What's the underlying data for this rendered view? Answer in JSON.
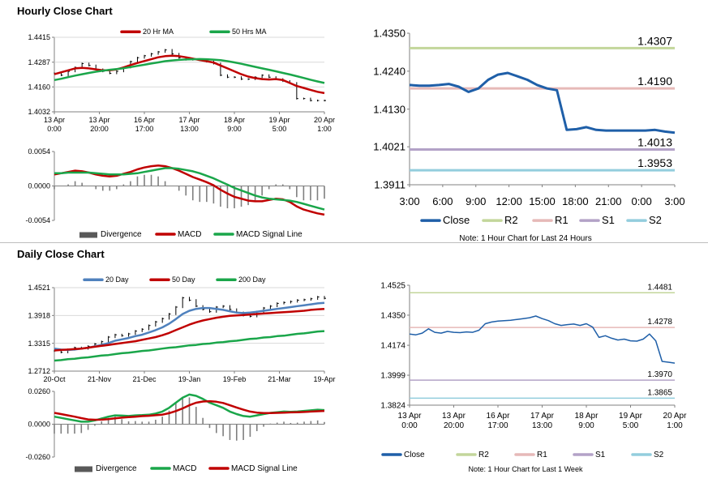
{
  "sections": {
    "hourly_title": "Hourly Close Chart",
    "daily_title": "Daily Close Chart"
  },
  "chart_data": [
    {
      "id": "hourly_price",
      "type": "line",
      "title": "",
      "ylim": [
        1.4032,
        1.4415
      ],
      "yticks": [
        "1.4415",
        "1.4287",
        "1.4160",
        "1.4032"
      ],
      "xticks": [
        [
          "13 Apr",
          "0:00"
        ],
        [
          "13 Apr",
          "20:00"
        ],
        [
          "16 Apr",
          "17:00"
        ],
        [
          "17 Apr",
          "13:00"
        ],
        [
          "18 Apr",
          "9:00"
        ],
        [
          "19 Apr",
          "5:00"
        ],
        [
          "20 Apr",
          "1:00"
        ]
      ],
      "legend": [
        "20 Hr MA",
        "50 Hrs MA"
      ],
      "series": [
        {
          "name": "Close",
          "color": "#000000",
          "values": [
            1.423,
            1.422,
            1.424,
            1.426,
            1.428,
            1.427,
            1.425,
            1.424,
            1.423,
            1.424,
            1.426,
            1.429,
            1.431,
            1.432,
            1.433,
            1.434,
            1.435,
            1.433,
            1.431,
            1.43,
            1.43,
            1.43,
            1.429,
            1.428,
            1.422,
            1.421,
            1.421,
            1.42,
            1.42,
            1.421,
            1.422,
            1.421,
            1.42,
            1.419,
            1.418,
            1.41,
            1.41,
            1.409,
            1.409,
            1.409
          ]
        },
        {
          "name": "20 Hr MA",
          "color": "#c00000",
          "values": [
            1.4225,
            1.4235,
            1.4245,
            1.4255,
            1.4258,
            1.4255,
            1.425,
            1.4245,
            1.4245,
            1.425,
            1.426,
            1.4272,
            1.4283,
            1.4293,
            1.4302,
            1.4312,
            1.4318,
            1.432,
            1.4318,
            1.4312,
            1.4305,
            1.4298,
            1.4292,
            1.4285,
            1.427,
            1.4255,
            1.424,
            1.4225,
            1.4213,
            1.4205,
            1.42,
            1.4198,
            1.42,
            1.4195,
            1.418,
            1.4165,
            1.4155,
            1.4145,
            1.4135,
            1.4128
          ]
        },
        {
          "name": "50 Hrs MA",
          "color": "#1aa64a",
          "values": [
            1.4195,
            1.4202,
            1.421,
            1.4218,
            1.4225,
            1.4232,
            1.4238,
            1.4243,
            1.4248,
            1.4252,
            1.4256,
            1.4262,
            1.4268,
            1.4274,
            1.428,
            1.4286,
            1.4292,
            1.4296,
            1.4299,
            1.4301,
            1.4302,
            1.4303,
            1.4302,
            1.43,
            1.4297,
            1.4292,
            1.4286,
            1.4279,
            1.4271,
            1.4263,
            1.4255,
            1.4248,
            1.424,
            1.4232,
            1.4224,
            1.4215,
            1.4206,
            1.4197,
            1.4188,
            1.418
          ]
        }
      ]
    },
    {
      "id": "hourly_macd",
      "type": "line",
      "ylim": [
        -0.0054,
        0.0054
      ],
      "yticks": [
        "0.0054",
        "0.0000",
        "-0.0054"
      ],
      "legend": [
        "Divergence",
        "MACD",
        "MACD Signal Line"
      ],
      "series": [
        {
          "name": "MACD",
          "color": "#c00000",
          "values": [
            0.0018,
            0.002,
            0.0022,
            0.0024,
            0.0023,
            0.0021,
            0.0018,
            0.0016,
            0.0015,
            0.0016,
            0.0019,
            0.0022,
            0.0026,
            0.0029,
            0.0031,
            0.0032,
            0.0031,
            0.0028,
            0.0024,
            0.0019,
            0.0014,
            0.001,
            0.0006,
            0.0001,
            -0.0006,
            -0.0012,
            -0.0017,
            -0.002,
            -0.0023,
            -0.0024,
            -0.0024,
            -0.0022,
            -0.002,
            -0.0021,
            -0.0025,
            -0.0032,
            -0.0037,
            -0.004,
            -0.0043,
            -0.0045
          ]
        },
        {
          "name": "MACD Signal Line",
          "color": "#1aa64a",
          "values": [
            0.002,
            0.002,
            0.0021,
            0.0021,
            0.0021,
            0.0021,
            0.002,
            0.0019,
            0.0018,
            0.0018,
            0.0018,
            0.0019,
            0.002,
            0.0022,
            0.0024,
            0.0026,
            0.0028,
            0.0028,
            0.0027,
            0.0025,
            0.0023,
            0.002,
            0.0016,
            0.0012,
            0.0007,
            0.0002,
            -0.0003,
            -0.0007,
            -0.0011,
            -0.0015,
            -0.0018,
            -0.002,
            -0.0021,
            -0.0022,
            -0.0023,
            -0.0025,
            -0.0028,
            -0.0031,
            -0.0034,
            -0.0037
          ]
        }
      ]
    },
    {
      "id": "hourly_levels",
      "type": "line",
      "ylim": [
        1.3911,
        1.435
      ],
      "yticks": [
        "1.4350",
        "1.4240",
        "1.4130",
        "1.4021",
        "1.3911"
      ],
      "xticks": [
        "3:00",
        "6:00",
        "9:00",
        "12:00",
        "15:00",
        "18:00",
        "21:00",
        "0:00",
        "3:00"
      ],
      "legend": [
        "Close",
        "R2",
        "R1",
        "S1",
        "S2"
      ],
      "levels": [
        {
          "name": "R2",
          "value": 1.4307,
          "label": "1.4307",
          "color": "#c3d69b"
        },
        {
          "name": "R1",
          "value": 1.419,
          "label": "1.4190",
          "color": "#e6b9b8"
        },
        {
          "name": "S1",
          "value": 1.4013,
          "label": "1.4013",
          "color": "#b3a2c7"
        },
        {
          "name": "S2",
          "value": 1.3953,
          "label": "1.3953",
          "color": "#93cddd"
        }
      ],
      "series": [
        {
          "name": "Close",
          "color": "#1f5fa8",
          "values": [
            1.42,
            1.4198,
            1.4198,
            1.42,
            1.4203,
            1.4195,
            1.418,
            1.419,
            1.4215,
            1.423,
            1.4235,
            1.4225,
            1.4215,
            1.42,
            1.419,
            1.4185,
            1.407,
            1.4072,
            1.4078,
            1.407,
            1.4068,
            1.4068,
            1.4068,
            1.4068,
            1.4068,
            1.407,
            1.4065,
            1.4062
          ]
        }
      ],
      "note": "Note: 1 Hour Chart for Last 24 Hours"
    },
    {
      "id": "daily_price",
      "type": "line",
      "ylim": [
        1.2712,
        1.4521
      ],
      "yticks": [
        "1.4521",
        "1.3918",
        "1.3315",
        "1.2712"
      ],
      "xticks": [
        "20-Oct",
        "21-Nov",
        "21-Dec",
        "19-Jan",
        "19-Feb",
        "21-Mar",
        "19-Apr"
      ],
      "legend": [
        "20 Day",
        "50 Day",
        "200 Day"
      ],
      "series": [
        {
          "name": "Close",
          "color": "#000000",
          "values": [
            1.315,
            1.312,
            1.318,
            1.322,
            1.32,
            1.325,
            1.33,
            1.335,
            1.345,
            1.35,
            1.348,
            1.352,
            1.358,
            1.362,
            1.37,
            1.378,
            1.385,
            1.395,
            1.41,
            1.43,
            1.425,
            1.412,
            1.405,
            1.4,
            1.41,
            1.412,
            1.405,
            1.398,
            1.392,
            1.39,
            1.4,
            1.408,
            1.412,
            1.418,
            1.42,
            1.422,
            1.425,
            1.426,
            1.428,
            1.432,
            1.429
          ]
        },
        {
          "name": "20 Day",
          "color": "#4f81bd",
          "values": [
            1.32,
            1.318,
            1.317,
            1.318,
            1.32,
            1.322,
            1.325,
            1.328,
            1.332,
            1.337,
            1.34,
            1.343,
            1.347,
            1.35,
            1.355,
            1.36,
            1.366,
            1.374,
            1.384,
            1.395,
            1.402,
            1.406,
            1.408,
            1.408,
            1.406,
            1.404,
            1.401,
            1.398,
            1.397,
            1.398,
            1.4,
            1.402,
            1.404,
            1.406,
            1.408,
            1.41,
            1.412,
            1.414,
            1.416,
            1.418,
            1.419
          ]
        },
        {
          "name": "50 Day",
          "color": "#c00000",
          "values": [
            1.316,
            1.317,
            1.318,
            1.319,
            1.32,
            1.322,
            1.324,
            1.326,
            1.328,
            1.33,
            1.332,
            1.334,
            1.336,
            1.339,
            1.342,
            1.345,
            1.349,
            1.354,
            1.36,
            1.366,
            1.372,
            1.377,
            1.381,
            1.384,
            1.387,
            1.389,
            1.391,
            1.392,
            1.393,
            1.394,
            1.395,
            1.396,
            1.397,
            1.398,
            1.399,
            1.4,
            1.401,
            1.402,
            1.404,
            1.405,
            1.406
          ]
        },
        {
          "name": "200 Day",
          "color": "#1aa64a",
          "values": [
            1.294,
            1.295,
            1.297,
            1.298,
            1.3,
            1.301,
            1.303,
            1.305,
            1.306,
            1.308,
            1.31,
            1.311,
            1.313,
            1.315,
            1.316,
            1.318,
            1.32,
            1.322,
            1.323,
            1.325,
            1.327,
            1.328,
            1.33,
            1.331,
            1.333,
            1.334,
            1.336,
            1.337,
            1.339,
            1.341,
            1.342,
            1.344,
            1.345,
            1.347,
            1.348,
            1.35,
            1.352,
            1.353,
            1.355,
            1.357,
            1.358
          ]
        }
      ]
    },
    {
      "id": "daily_macd",
      "type": "line",
      "ylim": [
        -0.026,
        0.026
      ],
      "yticks": [
        "0.0260",
        "0.0000",
        "-0.0260"
      ],
      "legend": [
        "Divergence",
        "MACD",
        "MACD Signal Line"
      ],
      "series": [
        {
          "name": "MACD",
          "color": "#1aa64a",
          "values": [
            0.006,
            0.005,
            0.004,
            0.003,
            0.002,
            0.002,
            0.003,
            0.0045,
            0.006,
            0.007,
            0.0068,
            0.0065,
            0.007,
            0.0072,
            0.0075,
            0.0085,
            0.01,
            0.013,
            0.017,
            0.021,
            0.0235,
            0.0225,
            0.02,
            0.017,
            0.015,
            0.013,
            0.01,
            0.008,
            0.0065,
            0.006,
            0.007,
            0.008,
            0.009,
            0.0095,
            0.01,
            0.0098,
            0.01,
            0.0105,
            0.011,
            0.0115,
            0.0112
          ]
        },
        {
          "name": "MACD Signal Line",
          "color": "#c00000",
          "values": [
            0.009,
            0.008,
            0.007,
            0.006,
            0.0048,
            0.0038,
            0.0035,
            0.0036,
            0.004,
            0.0046,
            0.0052,
            0.0056,
            0.006,
            0.0064,
            0.0067,
            0.0071,
            0.0076,
            0.0087,
            0.0104,
            0.0125,
            0.015,
            0.017,
            0.018,
            0.0182,
            0.0178,
            0.0168,
            0.015,
            0.0132,
            0.0115,
            0.01,
            0.0092,
            0.0088,
            0.0088,
            0.009,
            0.0092,
            0.0094,
            0.0095,
            0.0097,
            0.01,
            0.0103,
            0.0105
          ]
        }
      ]
    },
    {
      "id": "weekly_levels",
      "type": "line",
      "ylim": [
        1.3824,
        1.4525
      ],
      "yticks": [
        "1.4525",
        "1.4350",
        "1.4174",
        "1.3999",
        "1.3824"
      ],
      "xticks": [
        [
          "13 Apr",
          "0:00"
        ],
        [
          "13 Apr",
          "20:00"
        ],
        [
          "16 Apr",
          "17:00"
        ],
        [
          "17 Apr",
          "13:00"
        ],
        [
          "18 Apr",
          "9:00"
        ],
        [
          "19 Apr",
          "5:00"
        ],
        [
          "20 Apr",
          "1:00"
        ]
      ],
      "legend": [
        "Close",
        "R2",
        "R1",
        "S1",
        "S2"
      ],
      "levels": [
        {
          "name": "R2",
          "value": 1.4481,
          "label": "1.4481",
          "color": "#c3d69b"
        },
        {
          "name": "R1",
          "value": 1.4278,
          "label": "1.4278",
          "color": "#e6b9b8"
        },
        {
          "name": "S1",
          "value": 1.397,
          "label": "1.3970",
          "color": "#b3a2c7"
        },
        {
          "name": "S2",
          "value": 1.3865,
          "label": "1.3865",
          "color": "#93cddd"
        }
      ],
      "series": [
        {
          "name": "Close",
          "color": "#1f5fa8",
          "values": [
            1.424,
            1.4235,
            1.4245,
            1.427,
            1.425,
            1.4245,
            1.4255,
            1.425,
            1.4248,
            1.4252,
            1.425,
            1.4262,
            1.43,
            1.431,
            1.4315,
            1.4318,
            1.432,
            1.4325,
            1.433,
            1.4335,
            1.4345,
            1.433,
            1.4318,
            1.43,
            1.429,
            1.4295,
            1.4298,
            1.429,
            1.43,
            1.428,
            1.422,
            1.423,
            1.4215,
            1.4205,
            1.421,
            1.42,
            1.4198,
            1.421,
            1.424,
            1.42,
            1.408,
            1.4075,
            1.407
          ]
        }
      ],
      "note": "Note: 1 Hour Chart for Last 1 Week"
    }
  ]
}
